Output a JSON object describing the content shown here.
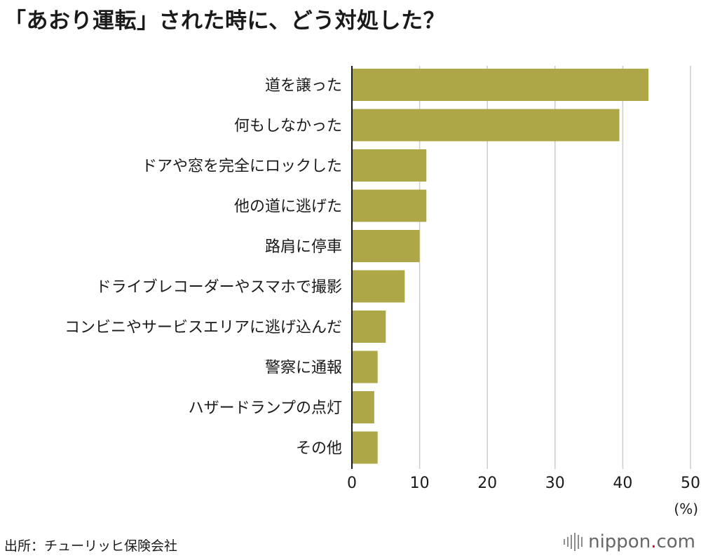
{
  "title": "「あおり運転」された時に、どう対処した？",
  "source": "出所：チューリッヒ保険会社",
  "brand": {
    "name": "nippon",
    "dot": ".",
    "tld": "com"
  },
  "colors": {
    "bar": "#ada747",
    "grid": "#cccccc",
    "axis": "#1a1a1a"
  },
  "chart_data": {
    "type": "bar",
    "orientation": "horizontal",
    "title": "「あおり運転」された時に、どう対処した？",
    "unit_label": "(%)",
    "xlim": [
      0,
      50
    ],
    "ticks": [
      0,
      10,
      20,
      30,
      40,
      50
    ],
    "grid": true,
    "categories": [
      "道を譲った",
      "何もしなかった",
      "ドアや窓を完全にロックした",
      "他の道に逃げた",
      "路肩に停車",
      "ドライブレコーダーやスマホで撮影",
      "コンビニやサービスエリアに逃げ込んだ",
      "警察に通報",
      "ハザードランプの点灯",
      "その他"
    ],
    "values": [
      43.8,
      39.5,
      11.0,
      11.0,
      10.0,
      7.8,
      5.0,
      3.8,
      3.3,
      3.8
    ]
  }
}
